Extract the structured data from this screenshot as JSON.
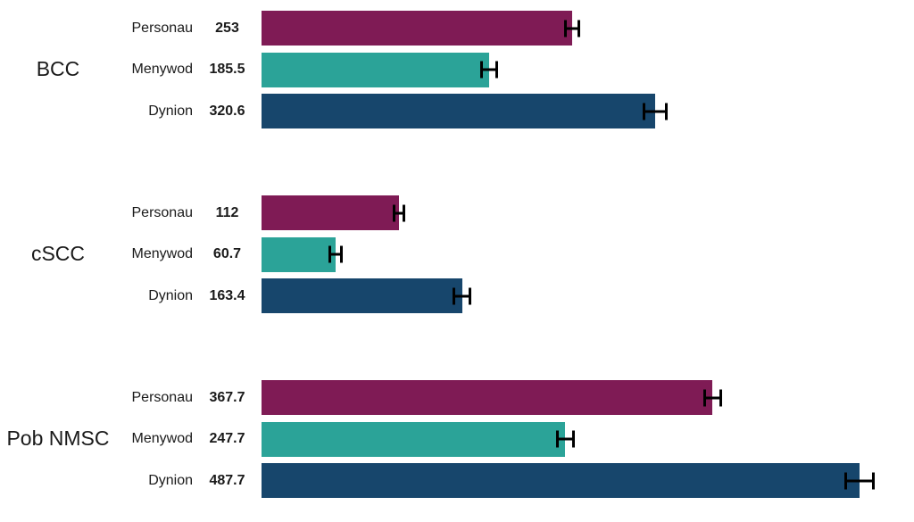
{
  "chart_data": {
    "type": "bar",
    "orientation": "horizontal",
    "title": "",
    "xlabel": "",
    "ylabel": "",
    "xlim": [
      0,
      532
    ],
    "grid": false,
    "legend": "none",
    "value_label_position": "left-of-bar",
    "series_colors": {
      "Personau": "#7F1B55",
      "Menywod": "#2BA398",
      "Dynion": "#17466C"
    },
    "error_bar_color": "#000000",
    "groups": [
      {
        "label": "BCC",
        "bars": [
          {
            "name": "Personau",
            "value": 253,
            "display": "253",
            "error": 6.5,
            "color": "#7F1B55"
          },
          {
            "name": "Menywod",
            "value": 185.5,
            "display": "185.5",
            "error": 7.3,
            "color": "#2BA398"
          },
          {
            "name": "Dynion",
            "value": 320.6,
            "display": "320.6",
            "error": 10.2,
            "color": "#17466C"
          }
        ]
      },
      {
        "label": "cSCC",
        "bars": [
          {
            "name": "Personau",
            "value": 112,
            "display": "112",
            "error": 5.1,
            "color": "#7F1B55"
          },
          {
            "name": "Menywod",
            "value": 60.7,
            "display": "60.7",
            "error": 5.8,
            "color": "#2BA398"
          },
          {
            "name": "Dynion",
            "value": 163.4,
            "display": "163.4",
            "error": 7.3,
            "color": "#17466C"
          }
        ]
      },
      {
        "label": "Pob NMSC",
        "bars": [
          {
            "name": "Personau",
            "value": 367.7,
            "display": "367.7",
            "error": 7.6,
            "color": "#7F1B55"
          },
          {
            "name": "Menywod",
            "value": 247.7,
            "display": "247.7",
            "error": 7.6,
            "color": "#2BA398"
          },
          {
            "name": "Dynion",
            "value": 487.7,
            "display": "487.7",
            "error": 12.4,
            "color": "#17466C"
          }
        ]
      }
    ]
  }
}
